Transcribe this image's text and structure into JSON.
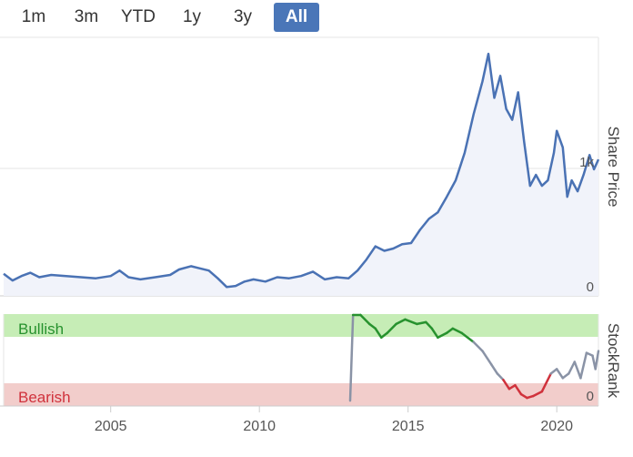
{
  "range_selector": {
    "buttons": [
      {
        "label": "1m",
        "active": false
      },
      {
        "label": "3m",
        "active": false
      },
      {
        "label": "YTD",
        "active": false
      },
      {
        "label": "1y",
        "active": false
      },
      {
        "label": "3y",
        "active": false
      },
      {
        "label": "All",
        "active": true
      }
    ]
  },
  "colors": {
    "price_line": "#4a72b4",
    "price_fill": "#f1f3fa",
    "bullish_band": "#c6edb6",
    "bearish_band": "#f2cdcb",
    "rank_up": "#27922e",
    "rank_mid": "#8a93a6",
    "rank_down": "#d0323c",
    "accent_button": "#4a76b8"
  },
  "chart_data": [
    {
      "type": "area",
      "ylabel": "Share Price",
      "y_ticks": [
        "0",
        "1k"
      ],
      "x_ticks": [
        "2005",
        "2010",
        "2015",
        "2020"
      ],
      "ylim": [
        0,
        2350
      ],
      "xlim": [
        2001.4,
        2021.4
      ],
      "series": [
        {
          "points": [
            [
              2001.4,
              200
            ],
            [
              2001.7,
              140
            ],
            [
              2002.0,
              180
            ],
            [
              2002.3,
              210
            ],
            [
              2002.6,
              170
            ],
            [
              2003.0,
              190
            ],
            [
              2003.5,
              180
            ],
            [
              2004.0,
              170
            ],
            [
              2004.5,
              160
            ],
            [
              2005.0,
              180
            ],
            [
              2005.3,
              230
            ],
            [
              2005.6,
              170
            ],
            [
              2006.0,
              150
            ],
            [
              2006.5,
              170
            ],
            [
              2007.0,
              190
            ],
            [
              2007.3,
              240
            ],
            [
              2007.7,
              270
            ],
            [
              2008.0,
              250
            ],
            [
              2008.3,
              230
            ],
            [
              2008.6,
              160
            ],
            [
              2008.9,
              80
            ],
            [
              2009.2,
              90
            ],
            [
              2009.5,
              130
            ],
            [
              2009.8,
              150
            ],
            [
              2010.2,
              130
            ],
            [
              2010.6,
              170
            ],
            [
              2011.0,
              160
            ],
            [
              2011.4,
              180
            ],
            [
              2011.8,
              220
            ],
            [
              2012.2,
              150
            ],
            [
              2012.6,
              170
            ],
            [
              2013.0,
              160
            ],
            [
              2013.3,
              230
            ],
            [
              2013.6,
              330
            ],
            [
              2013.9,
              450
            ],
            [
              2014.2,
              410
            ],
            [
              2014.5,
              430
            ],
            [
              2014.8,
              470
            ],
            [
              2015.1,
              480
            ],
            [
              2015.4,
              600
            ],
            [
              2015.7,
              700
            ],
            [
              2016.0,
              760
            ],
            [
              2016.3,
              900
            ],
            [
              2016.6,
              1050
            ],
            [
              2016.9,
              1300
            ],
            [
              2017.2,
              1650
            ],
            [
              2017.5,
              1950
            ],
            [
              2017.7,
              2200
            ],
            [
              2017.9,
              1800
            ],
            [
              2018.1,
              2000
            ],
            [
              2018.3,
              1700
            ],
            [
              2018.5,
              1600
            ],
            [
              2018.7,
              1850
            ],
            [
              2018.9,
              1400
            ],
            [
              2019.1,
              1000
            ],
            [
              2019.3,
              1100
            ],
            [
              2019.5,
              1000
            ],
            [
              2019.7,
              1050
            ],
            [
              2019.9,
              1300
            ],
            [
              2020.0,
              1500
            ],
            [
              2020.2,
              1350
            ],
            [
              2020.35,
              900
            ],
            [
              2020.5,
              1050
            ],
            [
              2020.7,
              950
            ],
            [
              2020.9,
              1100
            ],
            [
              2021.1,
              1280
            ],
            [
              2021.25,
              1150
            ],
            [
              2021.4,
              1240
            ]
          ]
        }
      ]
    },
    {
      "type": "line",
      "ylabel": "StockRank",
      "y_tick": "0",
      "band_labels": {
        "top": "Bullish",
        "bottom": "Bearish"
      },
      "ylim": [
        0,
        100
      ],
      "series": [
        {
          "points": [
            [
              2013.05,
              5
            ],
            [
              2013.15,
              100
            ],
            [
              2013.4,
              100
            ],
            [
              2013.7,
              90
            ],
            [
              2013.9,
              85
            ],
            [
              2014.1,
              75
            ],
            [
              2014.3,
              80
            ],
            [
              2014.6,
              90
            ],
            [
              2014.9,
              95
            ],
            [
              2015.3,
              90
            ],
            [
              2015.6,
              92
            ],
            [
              2015.8,
              85
            ],
            [
              2016.0,
              75
            ],
            [
              2016.3,
              80
            ],
            [
              2016.5,
              85
            ],
            [
              2016.8,
              80
            ],
            [
              2017.2,
              70
            ],
            [
              2017.5,
              60
            ],
            [
              2017.8,
              45
            ],
            [
              2018.0,
              35
            ],
            [
              2018.2,
              28
            ],
            [
              2018.4,
              18
            ],
            [
              2018.6,
              22
            ],
            [
              2018.8,
              12
            ],
            [
              2019.0,
              8
            ],
            [
              2019.2,
              10
            ],
            [
              2019.5,
              15
            ],
            [
              2019.8,
              35
            ],
            [
              2020.0,
              40
            ],
            [
              2020.2,
              30
            ],
            [
              2020.4,
              35
            ],
            [
              2020.6,
              48
            ],
            [
              2020.8,
              30
            ],
            [
              2021.0,
              58
            ],
            [
              2021.2,
              55
            ],
            [
              2021.3,
              40
            ],
            [
              2021.4,
              60
            ]
          ]
        }
      ]
    }
  ]
}
